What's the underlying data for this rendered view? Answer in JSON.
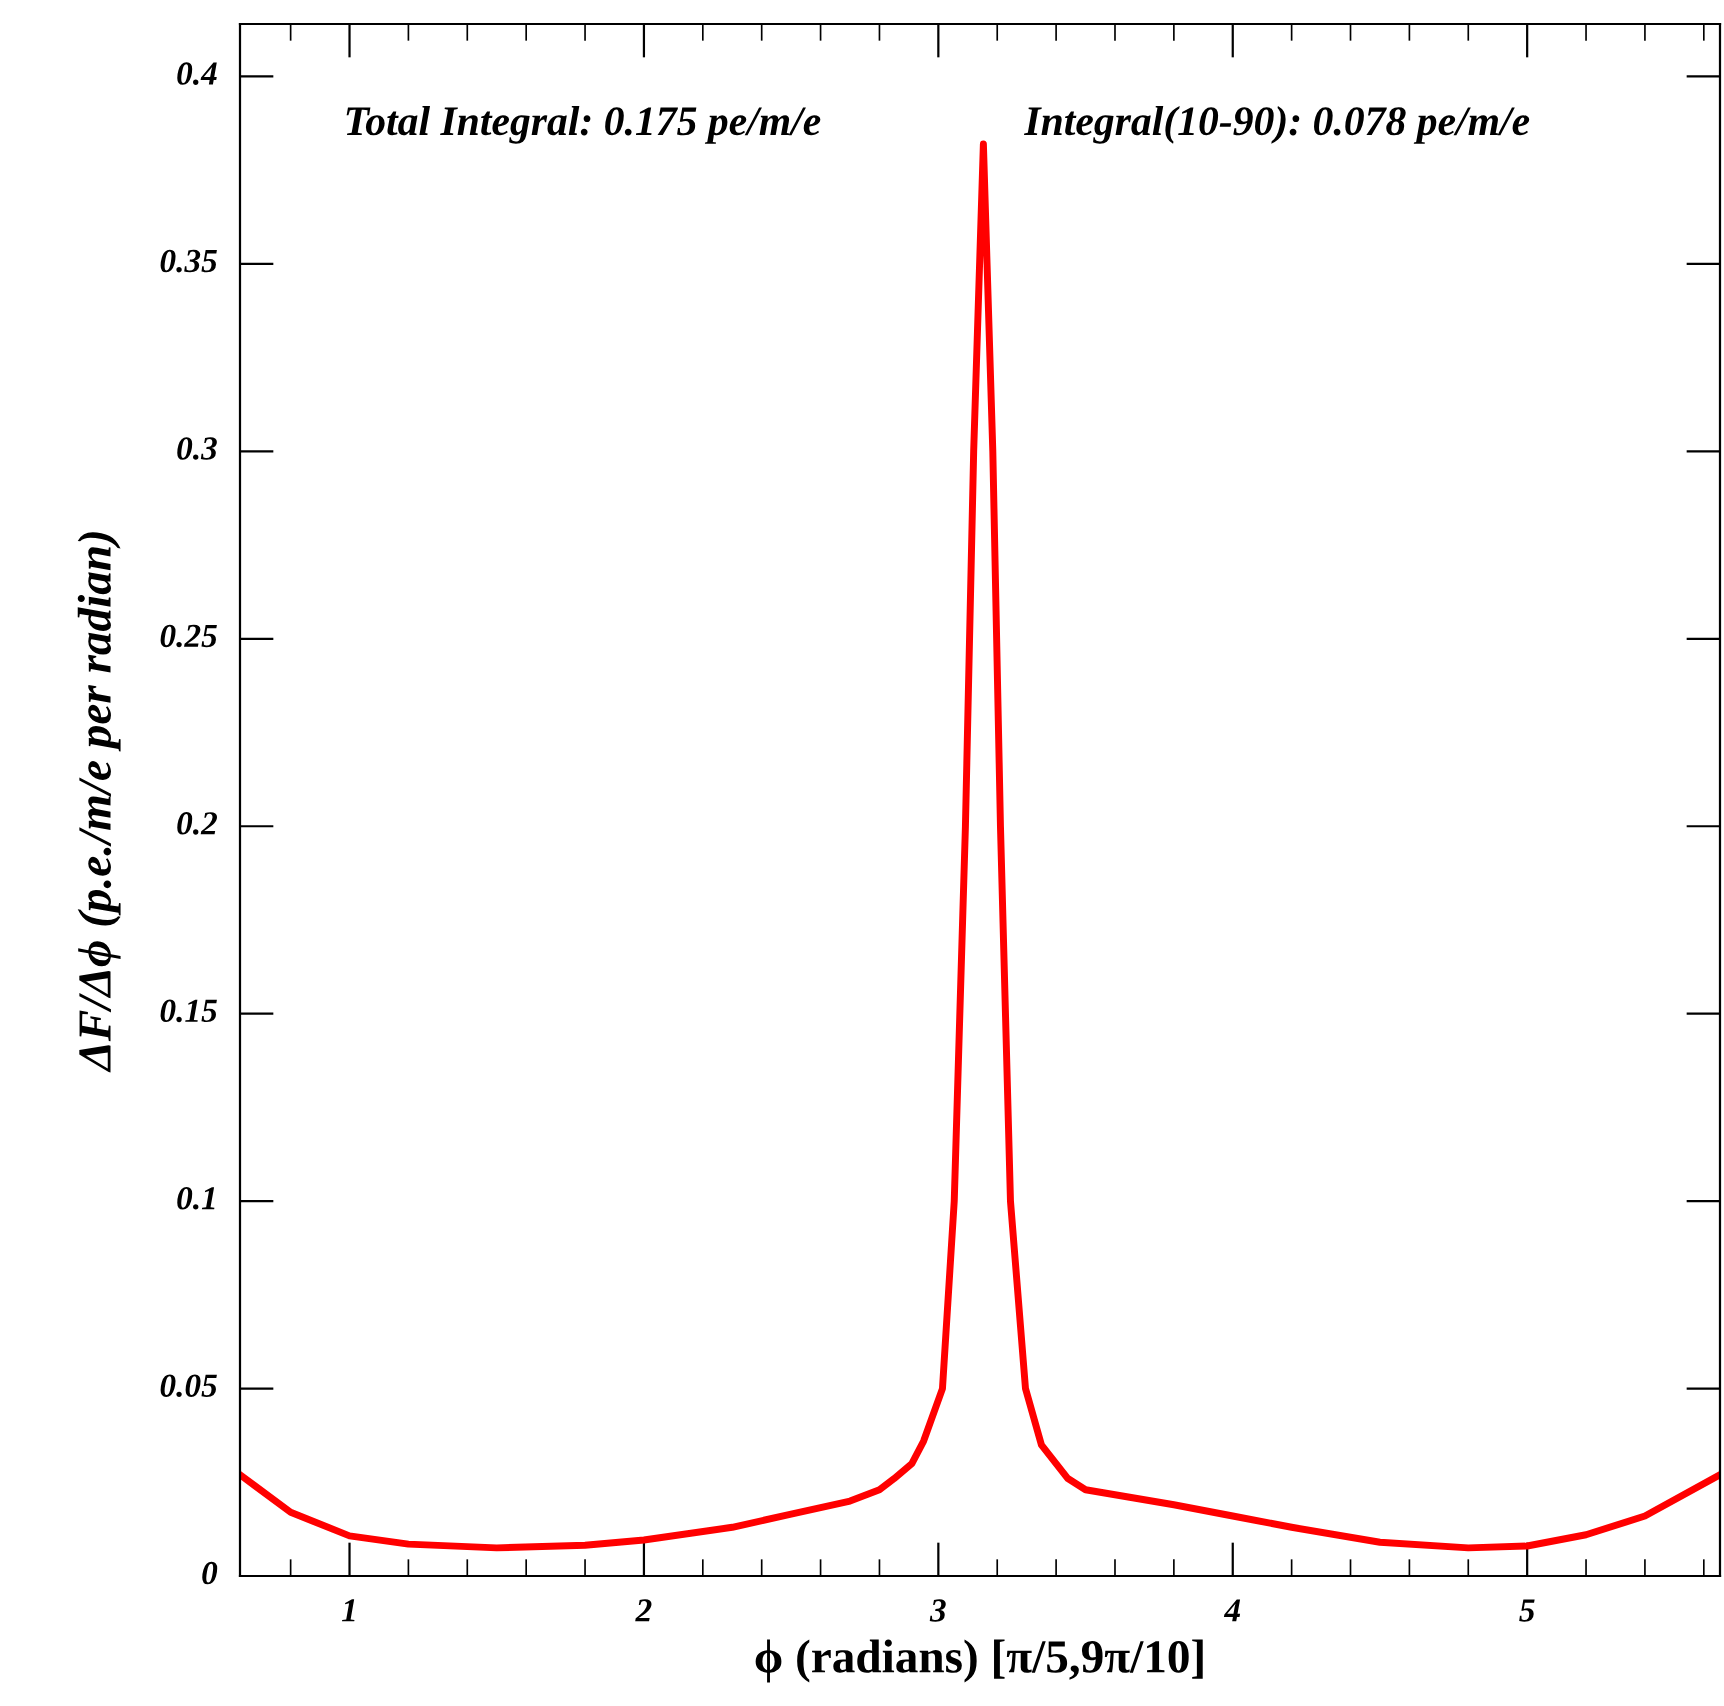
{
  "chart_data": {
    "type": "line",
    "xlabel": "ϕ (radians) [π/5,9π/10]",
    "ylabel": "ΔF/Δϕ (p.e./m/e per radian)",
    "annotations": [
      "Total Integral: 0.175 pe/m/e",
      "Integral(10-90): 0.078 pe/m/e"
    ],
    "xlim": [
      0.628,
      5.655
    ],
    "ylim": [
      0,
      0.414
    ],
    "xticks": [
      {
        "value": 0.8,
        "label": null
      },
      1,
      {
        "value": 1.2,
        "label": null
      },
      {
        "value": 1.4,
        "label": null
      },
      {
        "value": 1.6,
        "label": null
      },
      {
        "value": 1.8,
        "label": null
      },
      2,
      {
        "value": 2.2,
        "label": null
      },
      {
        "value": 2.4,
        "label": null
      },
      {
        "value": 2.6,
        "label": null
      },
      {
        "value": 2.8,
        "label": null
      },
      3,
      {
        "value": 3.2,
        "label": null
      },
      {
        "value": 3.4,
        "label": null
      },
      {
        "value": 3.6,
        "label": null
      },
      {
        "value": 3.8,
        "label": null
      },
      4,
      {
        "value": 4.2,
        "label": null
      },
      {
        "value": 4.4,
        "label": null
      },
      {
        "value": 4.6,
        "label": null
      },
      {
        "value": 4.8,
        "label": null
      },
      5,
      {
        "value": 5.2,
        "label": null
      },
      {
        "value": 5.4,
        "label": null
      },
      {
        "value": 5.6,
        "label": null
      }
    ],
    "yticks": [
      0,
      0.05,
      0.1,
      0.15,
      0.2,
      0.25,
      0.3,
      0.35,
      0.4
    ],
    "grid": false,
    "marker": "none",
    "line_style": "solid",
    "series": [
      {
        "color": "#ff0000",
        "x": [
          0.628,
          0.8,
          1.0,
          1.2,
          1.5,
          1.8,
          2.0,
          2.3,
          2.5,
          2.7,
          2.8,
          2.85,
          2.91,
          2.95,
          3.014,
          3.054,
          3.092,
          3.12,
          3.153,
          3.185,
          3.211,
          3.245,
          3.296,
          3.35,
          3.44,
          3.5,
          3.65,
          3.8,
          4.0,
          4.2,
          4.5,
          4.8,
          5.0,
          5.2,
          5.4,
          5.655
        ],
        "values": [
          0.027,
          0.017,
          0.0107,
          0.0085,
          0.0075,
          0.0082,
          0.0096,
          0.013,
          0.0165,
          0.02,
          0.023,
          0.026,
          0.03,
          0.036,
          0.05,
          0.1,
          0.2,
          0.3,
          0.382,
          0.3,
          0.2,
          0.1,
          0.05,
          0.035,
          0.026,
          0.023,
          0.021,
          0.019,
          0.016,
          0.013,
          0.009,
          0.0075,
          0.008,
          0.011,
          0.016,
          0.027
        ]
      }
    ]
  }
}
